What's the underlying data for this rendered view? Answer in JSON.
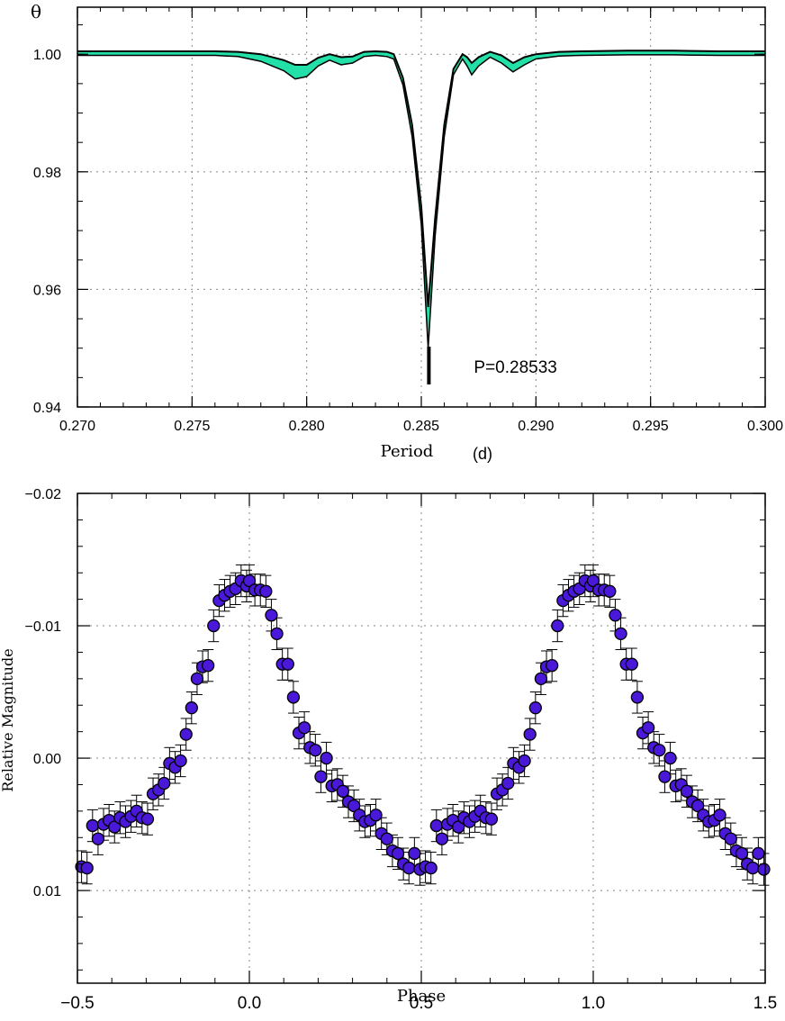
{
  "chart_data": [
    {
      "type": "line",
      "xlabel": "Period",
      "xlabel_unit": "(d)",
      "ylabel": "θ",
      "xlim": [
        0.27,
        0.3
      ],
      "ylim": [
        0.94,
        1.008
      ],
      "xticks": [
        "0.270",
        "0.275",
        "0.280",
        "0.285",
        "0.290",
        "0.295",
        "0.300"
      ],
      "xtick_values": [
        0.27,
        0.275,
        0.28,
        0.285,
        0.29,
        0.295,
        0.3
      ],
      "yticks": [
        "0.94",
        "0.96",
        "0.98",
        "1.00"
      ],
      "ytick_values": [
        0.94,
        0.96,
        0.98,
        1.0
      ],
      "grid": true,
      "annotation": {
        "text": "P=0.28533",
        "period": 0.28533
      },
      "band_color": "#22e0a8",
      "line_color": "#000000",
      "series": [
        {
          "x": [
            0.27,
            0.272,
            0.274,
            0.276,
            0.277,
            0.278,
            0.279,
            0.2795,
            0.28,
            0.2805,
            0.281,
            0.2815,
            0.282,
            0.2825,
            0.283,
            0.2835,
            0.2838,
            0.2842,
            0.2846,
            0.285,
            0.2853,
            0.2856,
            0.286,
            0.2864,
            0.2868,
            0.287,
            0.2872,
            0.2875,
            0.288,
            0.2885,
            0.289,
            0.2895,
            0.29,
            0.291,
            0.292,
            0.294,
            0.296,
            0.298,
            0.3
          ],
          "upper": [
            1.0005,
            1.0005,
            1.0005,
            1.0005,
            1.0004,
            1.0,
            0.999,
            0.9982,
            0.9982,
            0.9994,
            1.0,
            0.9995,
            0.9996,
            1.0004,
            1.0005,
            1.0004,
            1.0,
            0.996,
            0.988,
            0.974,
            0.957,
            0.972,
            0.988,
            0.9975,
            1.0,
            0.9995,
            0.9985,
            0.9995,
            1.0004,
            0.9998,
            0.9985,
            0.9995,
            1.0,
            1.0004,
            1.0005,
            1.0006,
            1.0006,
            1.0005,
            1.0005
          ],
          "lower": [
            0.9998,
            0.9998,
            0.9998,
            0.9998,
            0.9996,
            0.9988,
            0.9972,
            0.9958,
            0.9962,
            0.998,
            0.999,
            0.9982,
            0.9985,
            0.9996,
            0.9998,
            0.9996,
            0.9992,
            0.9948,
            0.986,
            0.971,
            0.95,
            0.969,
            0.986,
            0.9965,
            0.9992,
            0.998,
            0.9965,
            0.998,
            0.9995,
            0.9985,
            0.997,
            0.9982,
            0.9992,
            0.9997,
            0.9998,
            0.9999,
            0.9999,
            0.9998,
            0.9998
          ]
        }
      ]
    },
    {
      "type": "scatter",
      "xlabel": "Phase",
      "ylabel": "Relative Magnitude",
      "xlim": [
        -0.5,
        1.5
      ],
      "ylim": [
        0.017,
        -0.02
      ],
      "xticks": [
        "−0.5",
        "0.0",
        "0.5",
        "1.0",
        "1.5"
      ],
      "xtick_values": [
        -0.5,
        0.0,
        0.5,
        1.0,
        1.5
      ],
      "yticks": [
        "−0.02",
        "−0.01",
        "0.00",
        "0.01"
      ],
      "ytick_values": [
        -0.02,
        -0.01,
        0.0,
        0.01
      ],
      "grid": true,
      "marker_color": "#4a18d8",
      "error_bar": 0.0012,
      "phase": [
        0.0,
        0.016,
        0.032,
        0.048,
        0.064,
        0.08,
        0.096,
        0.112,
        0.128,
        0.144,
        0.16,
        0.176,
        0.192,
        0.208,
        0.224,
        0.24,
        0.256,
        0.272,
        0.288,
        0.304,
        0.32,
        0.336,
        0.352,
        0.368,
        0.384,
        0.4,
        0.416,
        0.432,
        0.448,
        0.464,
        0.48,
        0.496,
        0.512,
        0.528,
        0.544,
        0.56,
        0.576,
        0.592,
        0.608,
        0.624,
        0.64,
        0.656,
        0.672,
        0.688,
        0.704,
        0.72,
        0.736,
        0.752,
        0.768,
        0.784,
        0.8,
        0.816,
        0.832,
        0.848,
        0.864,
        0.88,
        0.896,
        0.912,
        0.928,
        0.944,
        0.96,
        0.976,
        0.992
      ],
      "magnitude": [
        -0.0134,
        -0.0127,
        -0.0127,
        -0.0126,
        -0.0108,
        -0.0094,
        -0.0071,
        -0.0071,
        -0.0046,
        -0.0019,
        -0.0023,
        -0.0008,
        -0.0006,
        0.0014,
        0.0,
        0.0021,
        0.002,
        0.0025,
        0.0033,
        0.0036,
        0.0043,
        0.0048,
        0.0047,
        0.0043,
        0.0057,
        0.0061,
        0.007,
        0.0072,
        0.008,
        0.0083,
        0.0072,
        0.0084,
        0.0082,
        0.0083,
        0.0051,
        0.0061,
        0.005,
        0.0047,
        0.0052,
        0.0045,
        0.0048,
        0.0044,
        0.004,
        0.0045,
        0.0046,
        0.0027,
        0.0024,
        0.0019,
        0.0004,
        0.0007,
        0.0002,
        -0.0018,
        -0.0038,
        -0.006,
        -0.0069,
        -0.007,
        -0.01,
        -0.0119,
        -0.0123,
        -0.0126,
        -0.0128,
        -0.0134,
        -0.013
      ]
    }
  ]
}
